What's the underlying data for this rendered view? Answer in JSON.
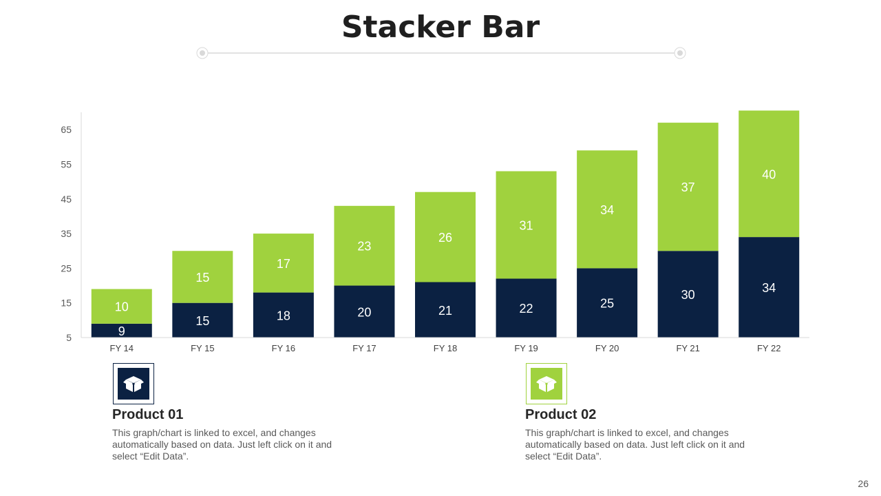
{
  "title": "Stacker Bar",
  "page_number": "26",
  "colors": {
    "series_1": "#0b2142",
    "series_2": "#a0d23e",
    "axis": "#d9d9d9",
    "rule": "#d0d0d0"
  },
  "legend": [
    {
      "title": "Product 01",
      "description": "This graph/chart is linked to excel, and changes automatically based on data. Just left click on it and select “Edit Data”.",
      "icon": "box-icon"
    },
    {
      "title": "Product 02",
      "description": "This graph/chart is linked to excel, and changes automatically based on data. Just left click on it and select “Edit Data”.",
      "icon": "box-icon"
    }
  ],
  "chart_data": {
    "type": "bar",
    "stacked": true,
    "title": "Stacker Bar",
    "xlabel": "",
    "ylabel": "",
    "categories": [
      "FY 14",
      "FY 15",
      "FY 16",
      "FY 17",
      "FY 18",
      "FY 19",
      "FY 20",
      "FY 21",
      "FY 22"
    ],
    "series": [
      {
        "name": "Product 01",
        "values": [
          9,
          15,
          18,
          20,
          21,
          22,
          25,
          30,
          34
        ]
      },
      {
        "name": "Product 02",
        "values": [
          10,
          15,
          17,
          23,
          26,
          31,
          34,
          37,
          40
        ]
      }
    ],
    "ylim": [
      5,
      70
    ],
    "yticks": [
      5,
      15,
      25,
      35,
      45,
      55,
      65
    ],
    "grid": false,
    "legend_position": "bottom"
  }
}
